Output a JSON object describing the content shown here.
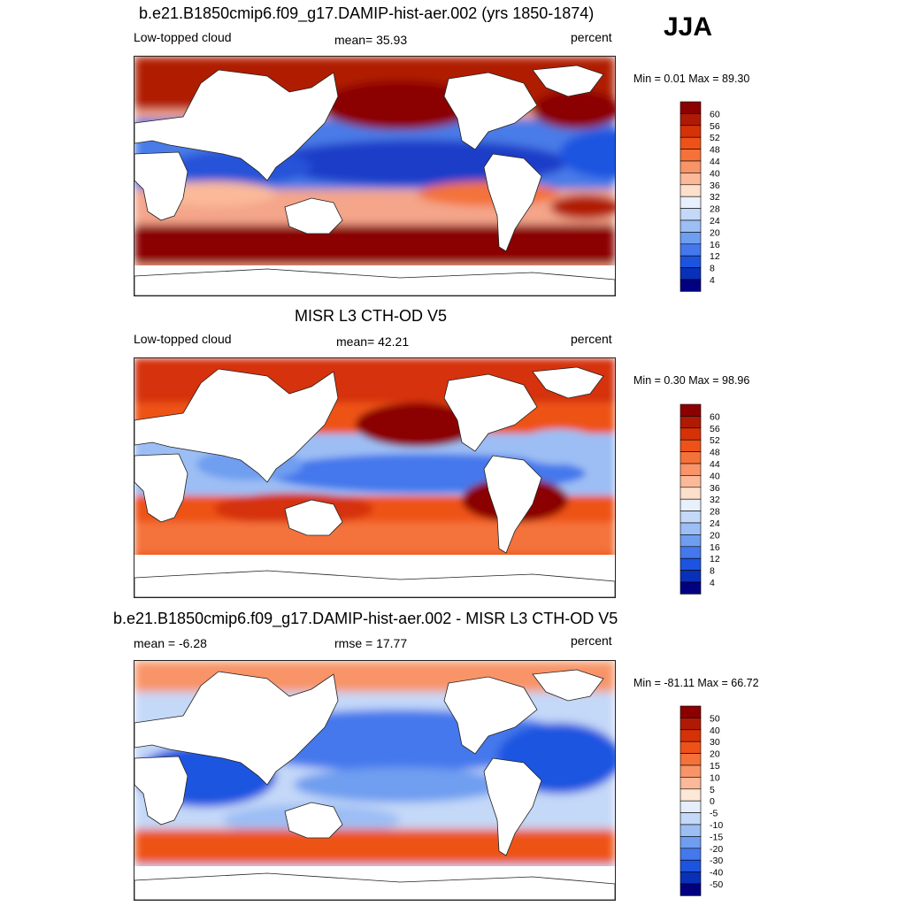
{
  "season": "JJA",
  "panels": [
    {
      "id": "model",
      "title": "b.e21.B1850cmip6.f09_g17.DAMIP-hist-aer.002 (yrs 1850-1874)",
      "left_text": "Low-topped cloud",
      "center_text": "mean=  35.93",
      "right_text": "percent",
      "minmax": "Min =   0.01 Max =  89.30",
      "colorbar": {
        "labels": [
          "60",
          "56",
          "52",
          "48",
          "44",
          "40",
          "36",
          "32",
          "28",
          "24",
          "20",
          "16",
          "12",
          "8",
          "4"
        ],
        "colors": [
          "#8b0000",
          "#b01a05",
          "#d63208",
          "#ee5218",
          "#f4723a",
          "#f89468",
          "#fbb99a",
          "#fde0cc",
          "#e8f0fc",
          "#c4d8f8",
          "#9cbef4",
          "#6f9ef0",
          "#4478ec",
          "#1c54e0",
          "#0830b8",
          "#000080"
        ]
      }
    },
    {
      "id": "obs",
      "title": "MISR L3 CTH-OD V5",
      "left_text": "Low-topped cloud",
      "center_text": "mean=  42.21",
      "right_text": "percent",
      "minmax": "Min =   0.30 Max =  98.96",
      "colorbar": {
        "labels": [
          "60",
          "56",
          "52",
          "48",
          "44",
          "40",
          "36",
          "32",
          "28",
          "24",
          "20",
          "16",
          "12",
          "8",
          "4"
        ],
        "colors": [
          "#8b0000",
          "#b01a05",
          "#d63208",
          "#ee5218",
          "#f4723a",
          "#f89468",
          "#fbb99a",
          "#fde0cc",
          "#e8f0fc",
          "#c4d8f8",
          "#9cbef4",
          "#6f9ef0",
          "#4478ec",
          "#1c54e0",
          "#0830b8",
          "#000080"
        ]
      }
    },
    {
      "id": "diff",
      "title": "b.e21.B1850cmip6.f09_g17.DAMIP-hist-aer.002 - MISR L3 CTH-OD V5",
      "left_text": "mean =  -6.28",
      "center_text": "rmse =  17.77",
      "right_text": "percent",
      "minmax": "Min = -81.11 Max =  66.72",
      "colorbar": {
        "labels": [
          "50",
          "40",
          "30",
          "20",
          "15",
          "10",
          "5",
          "0",
          "-5",
          "-10",
          "-15",
          "-20",
          "-30",
          "-40",
          "-50"
        ],
        "colors": [
          "#8b0000",
          "#b01a05",
          "#d63208",
          "#ee5218",
          "#f4723a",
          "#f89468",
          "#fbb99a",
          "#fde8d8",
          "#e4eefc",
          "#c4d8f8",
          "#9cbef4",
          "#6f9ef0",
          "#4478ec",
          "#1c54e0",
          "#0830b8",
          "#000080"
        ]
      }
    }
  ]
}
